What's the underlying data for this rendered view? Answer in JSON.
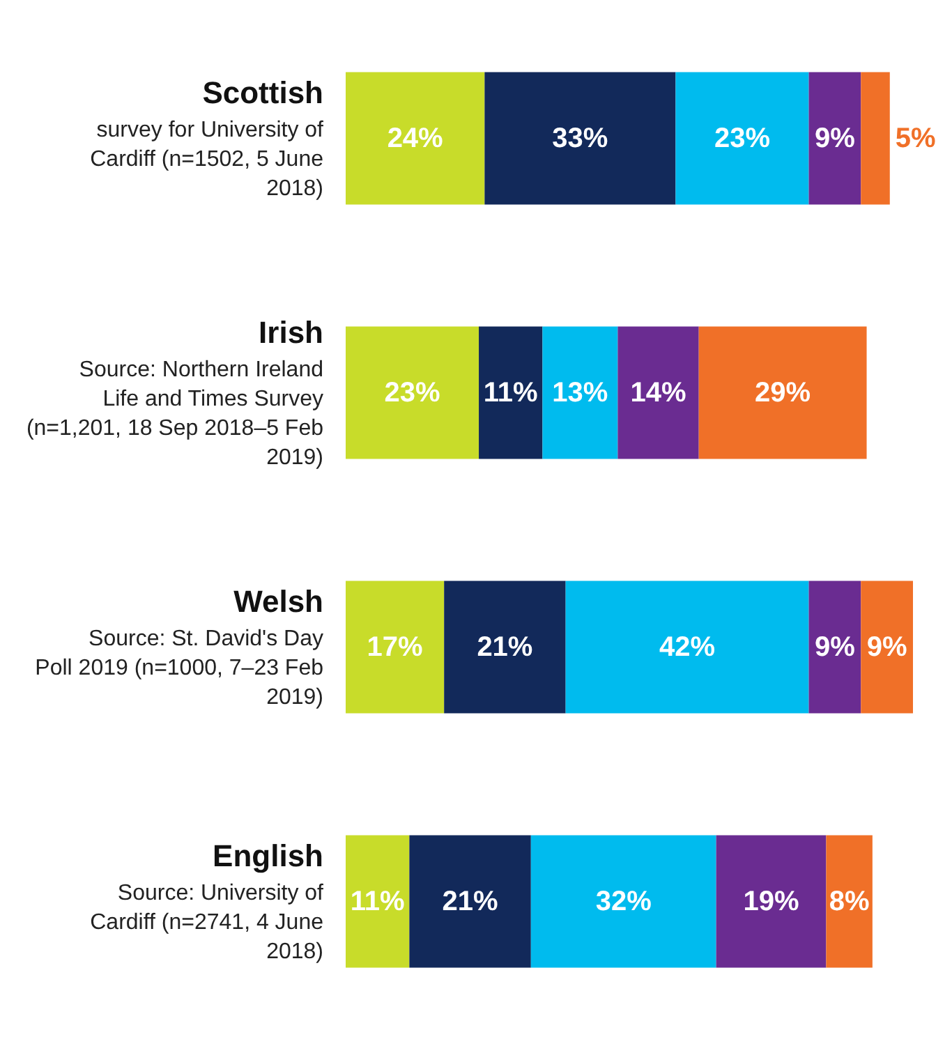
{
  "chart_data": {
    "type": "bar",
    "orientation": "horizontal",
    "stacked": true,
    "categories": [
      "Scottish",
      "Irish",
      "Welsh",
      "English"
    ],
    "annotations": [
      "survey for University of Cardiff (n=1502, 5 June 2018)",
      "Source: Northern Ireland Life and Times Survey (n=1,201, 18 Sep 2018–5 Feb 2019)",
      "Source: St. David's Day Poll 2019 (n=1000, 7–23 Feb 2019)",
      "Source: University of Cardiff (n=2741, 4 June 2018)"
    ],
    "series": [
      {
        "color": "#c8dc2a",
        "values": [
          24,
          23,
          17,
          11
        ],
        "value_labels": [
          "24%",
          "23%",
          "17%",
          "11%"
        ]
      },
      {
        "color": "#12295a",
        "values": [
          33,
          11,
          21,
          21
        ],
        "value_labels": [
          "33%",
          "11%",
          "21%",
          "21%"
        ]
      },
      {
        "color": "#00bbee",
        "values": [
          23,
          13,
          42,
          32
        ],
        "value_labels": [
          "23%",
          "13%",
          "42%",
          "32%"
        ]
      },
      {
        "color": "#6a2c91",
        "values": [
          9,
          14,
          9,
          19
        ],
        "value_labels": [
          "9%",
          "14%",
          "9%",
          "19%"
        ]
      },
      {
        "color": "#f07028",
        "values": [
          5,
          29,
          9,
          8
        ],
        "value_labels": [
          "5%",
          "29%",
          "9%",
          "8%"
        ]
      }
    ]
  }
}
